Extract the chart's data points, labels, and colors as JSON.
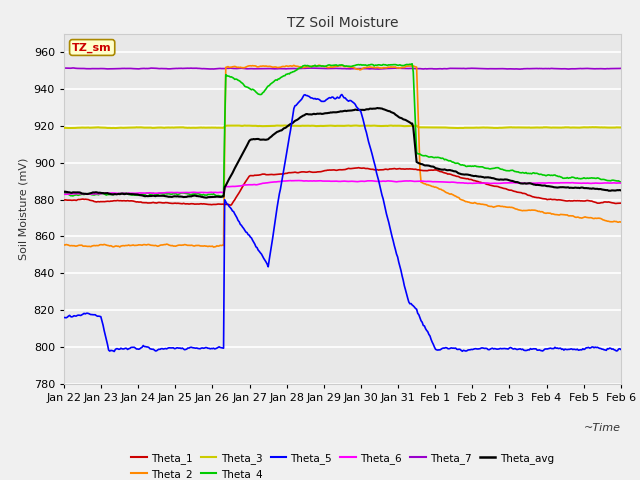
{
  "title": "TZ Soil Moisture",
  "xlabel": "Time",
  "ylabel": "Soil Moisture (mV)",
  "ylim": [
    780,
    970
  ],
  "yticks": [
    780,
    800,
    820,
    840,
    860,
    880,
    900,
    920,
    940,
    960
  ],
  "background_color": "#f0f0f0",
  "plot_bg_color": "#e8e8e8",
  "grid_color": "#ffffff",
  "label_box": "TZ_sm",
  "colors": {
    "Theta_1": "#cc0000",
    "Theta_2": "#ff8800",
    "Theta_3": "#cccc00",
    "Theta_4": "#00cc00",
    "Theta_5": "#0000ff",
    "Theta_6": "#ff00ff",
    "Theta_7": "#9900cc",
    "Theta_avg": "#000000"
  },
  "date_labels": [
    "Jan 22",
    "Jan 23",
    "Jan 24",
    "Jan 25",
    "Jan 26",
    "Jan 27",
    "Jan 28",
    "Jan 29",
    "Jan 30",
    "Jan 31",
    "Feb 1",
    "Feb 2",
    "Feb 3",
    "Feb 4",
    "Feb 5",
    "Feb 6"
  ]
}
